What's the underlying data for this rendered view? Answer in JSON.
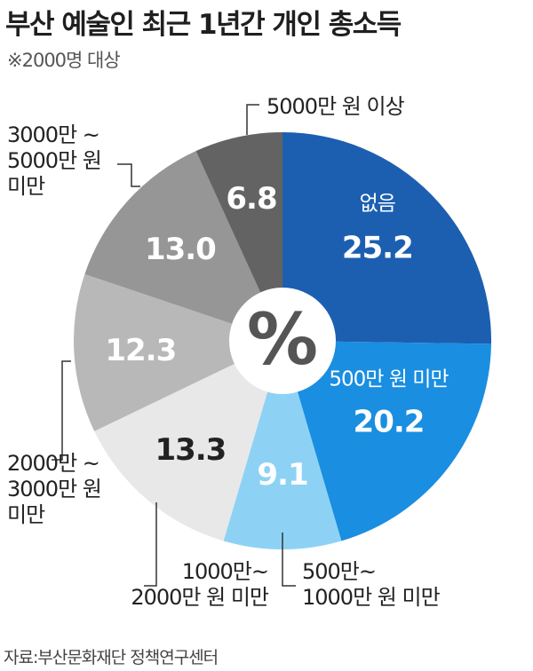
{
  "header": {
    "title": "부산 예술인 최근 1년간 개인 총소득",
    "subtitle": "※2000명 대상"
  },
  "footer": {
    "source": "자료:부산문화재단 정책연구센터"
  },
  "center_symbol": "%",
  "chart_data": {
    "type": "pie",
    "title": "부산 예술인 최근 1년간 개인 총소득",
    "subtitle": "※2000명 대상",
    "unit": "%",
    "slices": [
      {
        "label": "없음",
        "label_lines": [
          "없음"
        ],
        "value": 25.2,
        "value_label": "25.2",
        "color": "#1c5fb0",
        "text_color": "#ffffff",
        "label_position": "inside"
      },
      {
        "label": "500만 원 미만",
        "label_lines": [
          "500만 원 미만"
        ],
        "value": 20.2,
        "value_label": "20.2",
        "color": "#1a8ee0",
        "text_color": "#ffffff",
        "label_position": "inside"
      },
      {
        "label": "500만~ 1000만 원 미만",
        "label_lines": [
          "500만~",
          "1000만 원 미만"
        ],
        "value": 9.1,
        "value_label": "9.1",
        "color": "#8dd2f5",
        "text_color": "#ffffff",
        "label_position": "outside"
      },
      {
        "label": "1000만~ 2000만 원 미만",
        "label_lines": [
          "1000만~",
          "2000만 원 미만"
        ],
        "value": 13.3,
        "value_label": "13.3",
        "color": "#e8e8e8",
        "text_color": "#222222",
        "label_position": "outside"
      },
      {
        "label": "2000만 ~ 3000만 원 미만",
        "label_lines": [
          "2000만 ~",
          "3000만 원",
          "미만"
        ],
        "value": 12.3,
        "value_label": "12.3",
        "color": "#b8b8b8",
        "text_color": "#ffffff",
        "label_position": "outside"
      },
      {
        "label": "3000만 ~ 5000만 원 미만",
        "label_lines": [
          "3000만 ~",
          "5000만 원",
          "미만"
        ],
        "value": 13.0,
        "value_label": "13.0",
        "color": "#969696",
        "text_color": "#ffffff",
        "label_position": "outside"
      },
      {
        "label": "5000만 원 이상",
        "label_lines": [
          "5000만 원 이상"
        ],
        "value": 6.8,
        "value_label": "6.8",
        "color": "#636363",
        "text_color": "#ffffff",
        "label_position": "outside"
      }
    ]
  }
}
